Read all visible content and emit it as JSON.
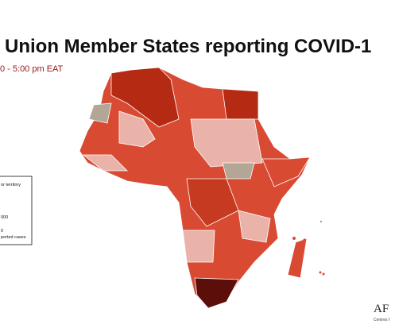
{
  "header": {
    "title": "Union Member States reporting COVID-1",
    "subtitle": "0 - 5:00 pm EAT"
  },
  "legend": {
    "items": [
      "or territory",
      "000",
      "0",
      "ported cases"
    ]
  },
  "logo": {
    "text": "AF",
    "caption": "Centres f"
  }
}
